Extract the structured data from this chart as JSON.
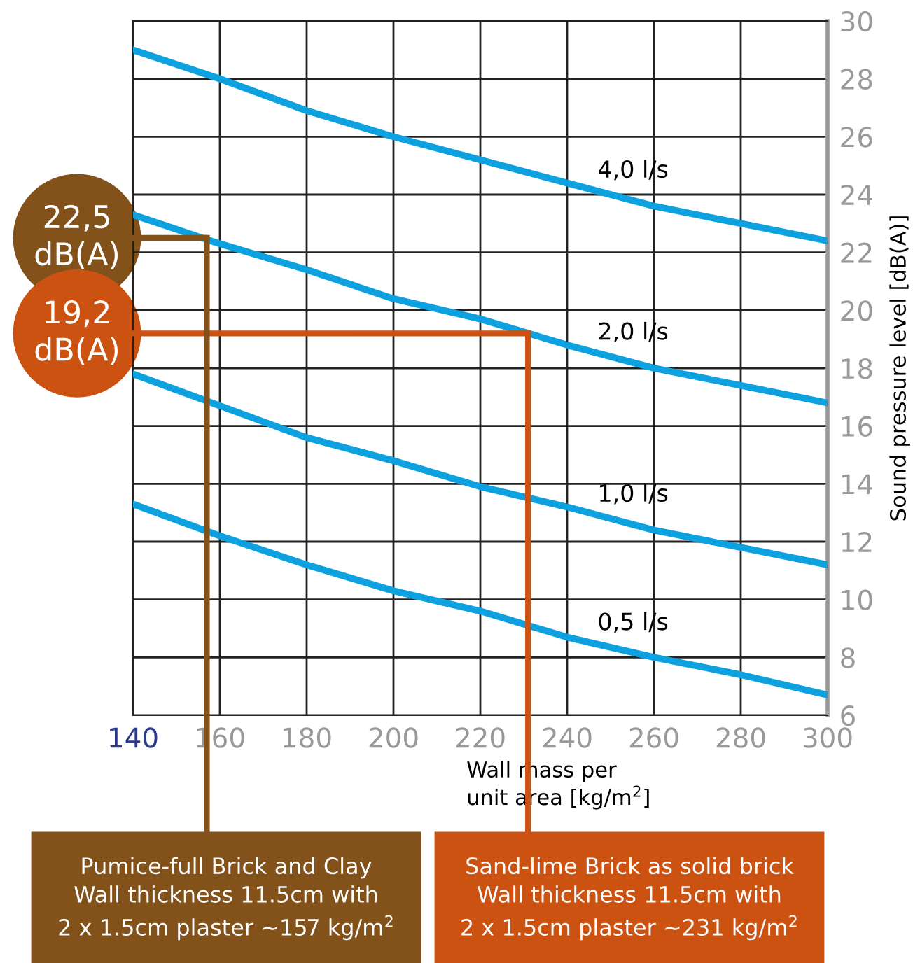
{
  "chart_data": {
    "type": "line",
    "xlabel": "Wall mass per\nunit area [kg/m$^{2}$]",
    "ylabel": "Sound pressure level [dB(A)]",
    "x": [
      140,
      160,
      180,
      200,
      220,
      240,
      260,
      280,
      300
    ],
    "series": [
      {
        "name": "4,0 l/s",
        "color": "#0ea1e0",
        "values": [
          29.0,
          28.0,
          26.9,
          26.0,
          25.2,
          24.4,
          23.6,
          23.0,
          22.4
        ]
      },
      {
        "name": "2,0 l/s",
        "color": "#0ea1e0",
        "values": [
          23.3,
          22.3,
          21.4,
          20.4,
          19.7,
          18.8,
          18.0,
          17.4,
          16.8
        ]
      },
      {
        "name": "1,0 l/s",
        "color": "#0ea1e0",
        "values": [
          17.8,
          16.7,
          15.6,
          14.8,
          13.9,
          13.2,
          12.4,
          11.8,
          11.2
        ]
      },
      {
        "name": "0,5 l/s",
        "color": "#0ea1e0",
        "values": [
          13.3,
          12.2,
          11.2,
          10.3,
          9.6,
          8.7,
          8.0,
          7.4,
          6.7
        ]
      }
    ],
    "xlim": [
      140,
      300
    ],
    "xticks": [
      140,
      160,
      180,
      200,
      220,
      240,
      260,
      280,
      300
    ],
    "ylim": [
      6,
      30
    ],
    "yticks": [
      6,
      8,
      10,
      12,
      14,
      16,
      18,
      20,
      22,
      24,
      26,
      28,
      30
    ],
    "ref_lines": [
      {
        "axis": "x",
        "value": 157,
        "color": "#83521b"
      },
      {
        "axis": "x",
        "value": 231,
        "color": "#cc5212"
      }
    ],
    "grid": true,
    "legend": false,
    "marker": "none",
    "line_style": "solid",
    "annotations": [
      {
        "text": "22,5\ndB(A)",
        "x": 157,
        "y": 22.5
      },
      {
        "text": "19,2\ndB(A)",
        "x": 231,
        "y": 19.2
      },
      "Pumice-full Brick and Clay\nWall thickness 11.5cm with\n2 x 1.5cm plaster ~157 kg/m$^{2}$",
      "Sand-lime Brick as solid brick\nWall thickness 11.5cm with\n2 x 1.5cm plaster ~231 kg/m$^{2}$"
    ]
  }
}
